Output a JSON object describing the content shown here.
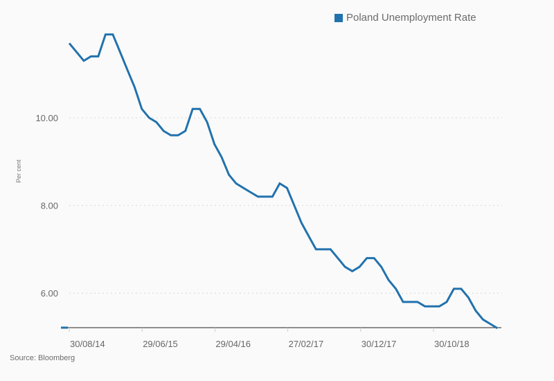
{
  "legend": {
    "label": "Poland Unemployment Rate",
    "color": "#2172ad"
  },
  "source": "Source: Bloomberg",
  "colors": {
    "line": "#2172ad",
    "grid": "#d8d8d8",
    "axis": "#222222",
    "text": "#666666"
  },
  "chart_data": {
    "type": "line",
    "title": "",
    "xlabel": "",
    "ylabel": "Per cent",
    "ylim": [
      5.2,
      12.0
    ],
    "y_ticks": [
      6.0,
      8.0,
      10.0
    ],
    "y_tick_labels": [
      "6.00",
      "8.00",
      "10.00"
    ],
    "x_tick_labels": [
      "30/08/14",
      "29/06/15",
      "29/04/16",
      "27/02/17",
      "30/12/17",
      "30/10/18"
    ],
    "grid": true,
    "legend_position": "top-right",
    "series": [
      {
        "name": "Poland Unemployment Rate",
        "values": [
          11.7,
          11.5,
          11.3,
          11.4,
          11.4,
          11.9,
          11.9,
          11.5,
          11.1,
          10.7,
          10.2,
          10.0,
          9.9,
          9.7,
          9.6,
          9.6,
          9.7,
          10.2,
          10.2,
          9.9,
          9.4,
          9.1,
          8.7,
          8.5,
          8.4,
          8.3,
          8.2,
          8.2,
          8.2,
          8.5,
          8.4,
          8.0,
          7.6,
          7.3,
          7.0,
          7.0,
          7.0,
          6.8,
          6.6,
          6.5,
          6.6,
          6.8,
          6.8,
          6.6,
          6.3,
          6.1,
          5.8,
          5.8,
          5.8,
          5.7,
          5.7,
          5.7,
          5.8,
          6.1,
          6.1,
          5.9,
          5.6,
          5.4,
          5.3,
          5.2
        ]
      }
    ]
  }
}
